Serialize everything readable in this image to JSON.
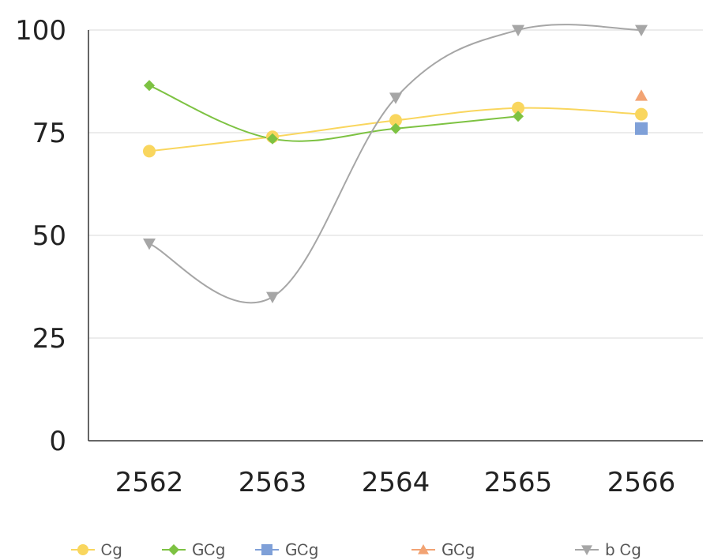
{
  "chart_data": {
    "type": "line",
    "categories": [
      "2562",
      "2563",
      "2564",
      "2565",
      "2566"
    ],
    "ylim": [
      0,
      100
    ],
    "yticks": [
      0,
      25,
      50,
      75,
      100
    ],
    "grid": true,
    "legend_position": "bottom",
    "series": [
      {
        "name": "Ꮯg",
        "marker": "circle",
        "color": "#F9D65E",
        "values": [
          70.5,
          74,
          78,
          81,
          79.5
        ]
      },
      {
        "name": "GᏟg",
        "marker": "diamond",
        "color": "#7DC242",
        "values": [
          86.5,
          73.5,
          76,
          79,
          null
        ]
      },
      {
        "name": "GᏟg",
        "marker": "square",
        "color": "#7FA0D8",
        "values": [
          null,
          null,
          null,
          null,
          76
        ]
      },
      {
        "name": "GᏟg",
        "marker": "triangle-up",
        "color": "#F2A373",
        "values": [
          null,
          null,
          null,
          null,
          84
        ]
      },
      {
        "name": "b Ꮯg",
        "marker": "triangle-down",
        "color": "#A6A6A6",
        "values": [
          48,
          35,
          83.5,
          100,
          100
        ]
      }
    ]
  }
}
